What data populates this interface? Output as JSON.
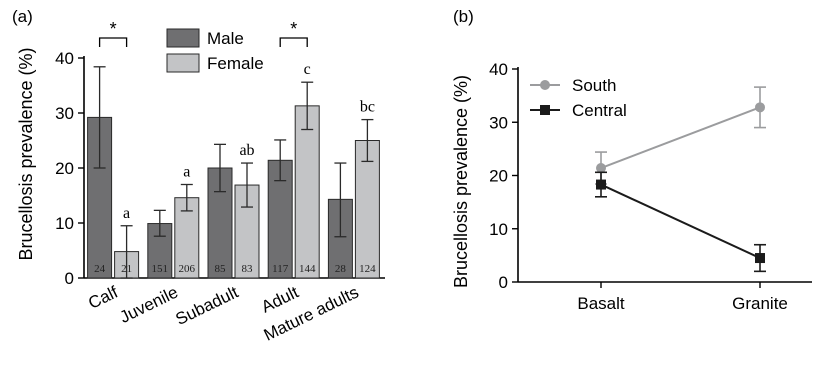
{
  "chart_data": [
    {
      "panel_label": "(a)",
      "type": "bar",
      "ylabel": "Brucellosis prevalence (%)",
      "ylim": [
        0,
        40
      ],
      "yticks": [
        "0",
        "10",
        "20",
        "30",
        "40"
      ],
      "categories": [
        "Calf",
        "Juvenile",
        "Subadult",
        "Adult",
        "Mature adults"
      ],
      "legend_position": "top-center",
      "colors": {
        "Male": "#6f6f71",
        "Female": "#c3c4c6"
      },
      "series": [
        {
          "name": "Male",
          "values": [
            29.2,
            9.9,
            20.0,
            21.4,
            14.3
          ],
          "err_low": [
            20.0,
            7.6,
            15.7,
            17.7,
            7.5
          ],
          "err_high": [
            38.4,
            12.3,
            24.3,
            25.1,
            20.9
          ],
          "n": [
            "24",
            "151",
            "85",
            "117",
            "28"
          ],
          "letters": [
            "",
            "",
            "",
            "",
            ""
          ]
        },
        {
          "name": "Female",
          "values": [
            4.8,
            14.6,
            16.9,
            31.3,
            25.0
          ],
          "err_low": [
            0.0,
            12.2,
            12.9,
            27.0,
            21.2
          ],
          "err_high": [
            9.5,
            17.0,
            20.9,
            35.6,
            28.8
          ],
          "n": [
            "21",
            "206",
            "83",
            "144",
            "124"
          ],
          "letters": [
            "a",
            "a",
            "ab",
            "c",
            "bc"
          ]
        }
      ],
      "significance": [
        {
          "category": "Calf",
          "label": "*"
        },
        {
          "category": "Adult",
          "label": "*"
        }
      ]
    },
    {
      "panel_label": "(b)",
      "type": "line",
      "ylabel": "Brucellosis prevalence (%)",
      "ylim": [
        0,
        40
      ],
      "yticks": [
        "0",
        "10",
        "20",
        "30",
        "40"
      ],
      "categories": [
        "Basalt",
        "Granite"
      ],
      "legend_position": "top-left",
      "colors": {
        "South": "#9b9c9e",
        "Central": "#1b1b1b"
      },
      "series": [
        {
          "name": "South",
          "marker": "circle",
          "values": [
            21.4,
            32.8
          ],
          "err_low": [
            18.4,
            29.0
          ],
          "err_high": [
            24.4,
            36.6
          ]
        },
        {
          "name": "Central",
          "marker": "square",
          "values": [
            18.3,
            4.5
          ],
          "err_low": [
            16.0,
            2.0
          ],
          "err_high": [
            20.6,
            7.0
          ]
        }
      ]
    }
  ]
}
